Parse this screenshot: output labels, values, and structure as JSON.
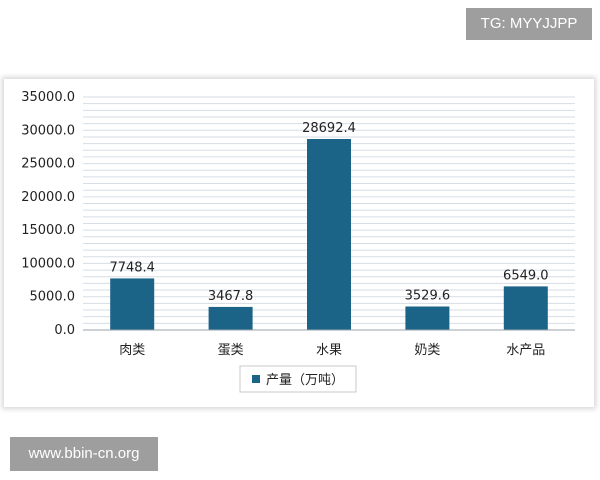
{
  "watermarks": {
    "top": "TG: MYYJJPP",
    "bottom": "www.bbin-cn.org"
  },
  "chart_data": {
    "type": "bar",
    "categories": [
      "肉类",
      "蛋类",
      "水果",
      "奶类",
      "水产品"
    ],
    "series": [
      {
        "name": "产量（万吨）",
        "values": [
          7748.4,
          3467.8,
          28692.4,
          3529.6,
          6549.0
        ]
      }
    ],
    "data_labels": [
      "7748.4",
      "3467.8",
      "28692.4",
      "3529.6",
      "6549.0"
    ],
    "ylim": [
      0,
      35000
    ],
    "yticks": [
      "0.0",
      "5000.0",
      "10000.0",
      "15000.0",
      "20000.0",
      "25000.0",
      "30000.0",
      "35000.0"
    ],
    "grid": true,
    "legend_position": "bottom-center",
    "colors": {
      "bar": "#1b6488",
      "grid": "#d5dde6",
      "axis": "#9ba3ab"
    },
    "title": "",
    "xlabel": "",
    "ylabel": ""
  }
}
